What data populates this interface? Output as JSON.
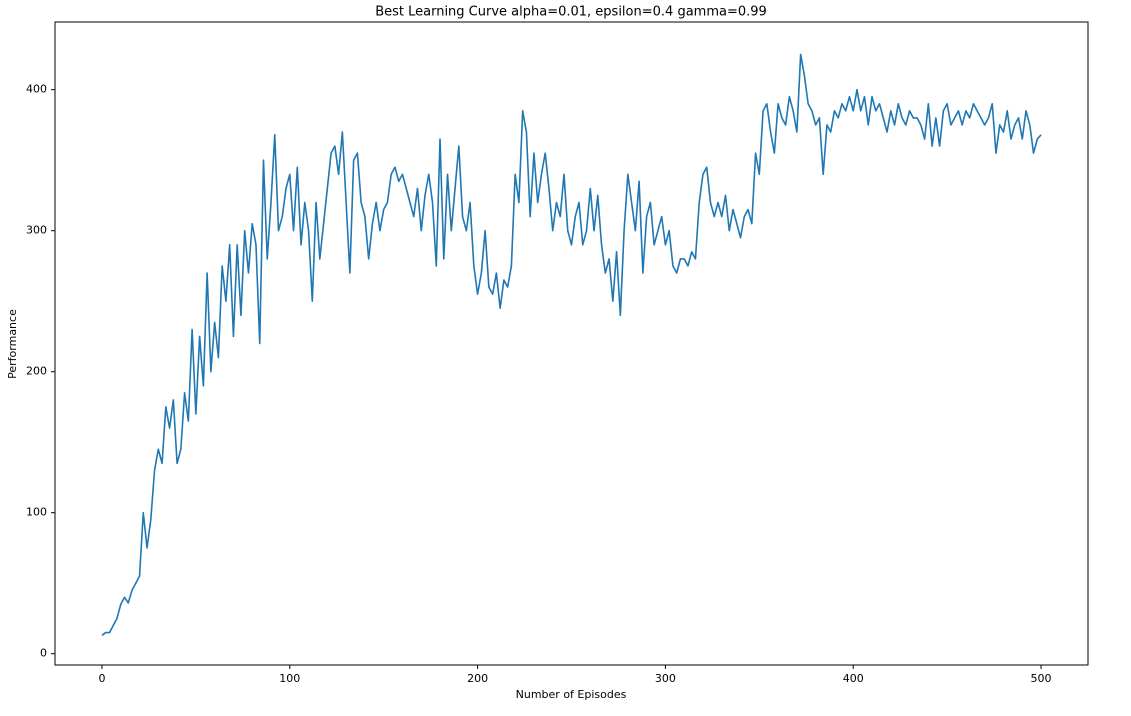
{
  "chart_data": {
    "type": "line",
    "title": "Best Learning Curve alpha=0.01, epsilon=0.4 gamma=0.99",
    "x_label": "Number of Episodes",
    "y_label": "Performance",
    "color": "#1f77b4",
    "xlim": [
      -25,
      525
    ],
    "ylim": [
      -8,
      448
    ],
    "xticks": [
      0,
      100,
      200,
      300,
      400,
      500
    ],
    "yticks": [
      0,
      100,
      200,
      300,
      400
    ],
    "grid": false,
    "x": [
      0,
      2,
      4,
      6,
      8,
      10,
      12,
      14,
      16,
      18,
      20,
      22,
      24,
      26,
      28,
      30,
      32,
      34,
      36,
      38,
      40,
      42,
      44,
      46,
      48,
      50,
      52,
      54,
      56,
      58,
      60,
      62,
      64,
      66,
      68,
      70,
      72,
      74,
      76,
      78,
      80,
      82,
      84,
      86,
      88,
      90,
      92,
      94,
      96,
      98,
      100,
      102,
      104,
      106,
      108,
      110,
      112,
      114,
      116,
      118,
      120,
      122,
      124,
      126,
      128,
      130,
      132,
      134,
      136,
      138,
      140,
      142,
      144,
      146,
      148,
      150,
      152,
      154,
      156,
      158,
      160,
      162,
      164,
      166,
      168,
      170,
      172,
      174,
      176,
      178,
      180,
      182,
      184,
      186,
      188,
      190,
      192,
      194,
      196,
      198,
      200,
      202,
      204,
      206,
      208,
      210,
      212,
      214,
      216,
      218,
      220,
      222,
      224,
      226,
      228,
      230,
      232,
      234,
      236,
      238,
      240,
      242,
      244,
      246,
      248,
      250,
      252,
      254,
      256,
      258,
      260,
      262,
      264,
      266,
      268,
      270,
      272,
      274,
      276,
      278,
      280,
      282,
      284,
      286,
      288,
      290,
      292,
      294,
      296,
      298,
      300,
      302,
      304,
      306,
      308,
      310,
      312,
      314,
      316,
      318,
      320,
      322,
      324,
      326,
      328,
      330,
      332,
      334,
      336,
      338,
      340,
      342,
      344,
      346,
      348,
      350,
      352,
      354,
      356,
      358,
      360,
      362,
      364,
      366,
      368,
      370,
      372,
      374,
      376,
      378,
      380,
      382,
      384,
      386,
      388,
      390,
      392,
      394,
      396,
      398,
      400,
      402,
      404,
      406,
      408,
      410,
      412,
      414,
      416,
      418,
      420,
      422,
      424,
      426,
      428,
      430,
      432,
      434,
      436,
      438,
      440,
      442,
      444,
      446,
      448,
      450,
      452,
      454,
      456,
      458,
      460,
      462,
      464,
      466,
      468,
      470,
      472,
      474,
      476,
      478,
      480,
      482,
      484,
      486,
      488,
      490,
      492,
      494,
      496,
      498,
      500
    ],
    "values": [
      13,
      15,
      15,
      20,
      25,
      35,
      40,
      36,
      45,
      50,
      55,
      100,
      75,
      95,
      130,
      145,
      135,
      175,
      160,
      180,
      135,
      145,
      185,
      165,
      230,
      170,
      225,
      190,
      270,
      200,
      235,
      210,
      275,
      250,
      290,
      225,
      290,
      240,
      300,
      270,
      305,
      290,
      220,
      350,
      280,
      320,
      368,
      300,
      310,
      330,
      340,
      300,
      345,
      290,
      320,
      300,
      250,
      320,
      280,
      305,
      330,
      355,
      360,
      340,
      370,
      320,
      270,
      350,
      355,
      320,
      310,
      280,
      305,
      320,
      300,
      315,
      320,
      340,
      345,
      335,
      340,
      330,
      320,
      310,
      330,
      300,
      325,
      340,
      320,
      275,
      365,
      280,
      340,
      300,
      330,
      360,
      310,
      300,
      320,
      275,
      255,
      270,
      300,
      260,
      255,
      270,
      245,
      265,
      260,
      275,
      340,
      320,
      385,
      370,
      310,
      355,
      320,
      340,
      355,
      330,
      300,
      320,
      310,
      340,
      300,
      290,
      310,
      320,
      290,
      300,
      330,
      300,
      325,
      290,
      270,
      280,
      250,
      285,
      240,
      300,
      340,
      320,
      300,
      335,
      270,
      310,
      320,
      290,
      300,
      310,
      290,
      300,
      275,
      270,
      280,
      280,
      275,
      285,
      280,
      320,
      340,
      345,
      320,
      310,
      320,
      310,
      325,
      300,
      315,
      305,
      295,
      310,
      315,
      305,
      355,
      340,
      385,
      390,
      370,
      355,
      390,
      380,
      375,
      395,
      385,
      370,
      425,
      410,
      390,
      385,
      375,
      380,
      340,
      375,
      370,
      385,
      380,
      390,
      385,
      395,
      385,
      400,
      385,
      395,
      375,
      395,
      385,
      390,
      380,
      370,
      385,
      375,
      390,
      380,
      375,
      385,
      380,
      380,
      375,
      365,
      390,
      360,
      380,
      360,
      385,
      390,
      375,
      380,
      385,
      375,
      385,
      380,
      390,
      385,
      380,
      375,
      380,
      390,
      355,
      375,
      370,
      385,
      365,
      375,
      380,
      365,
      385,
      375,
      355,
      365,
      368
    ]
  }
}
